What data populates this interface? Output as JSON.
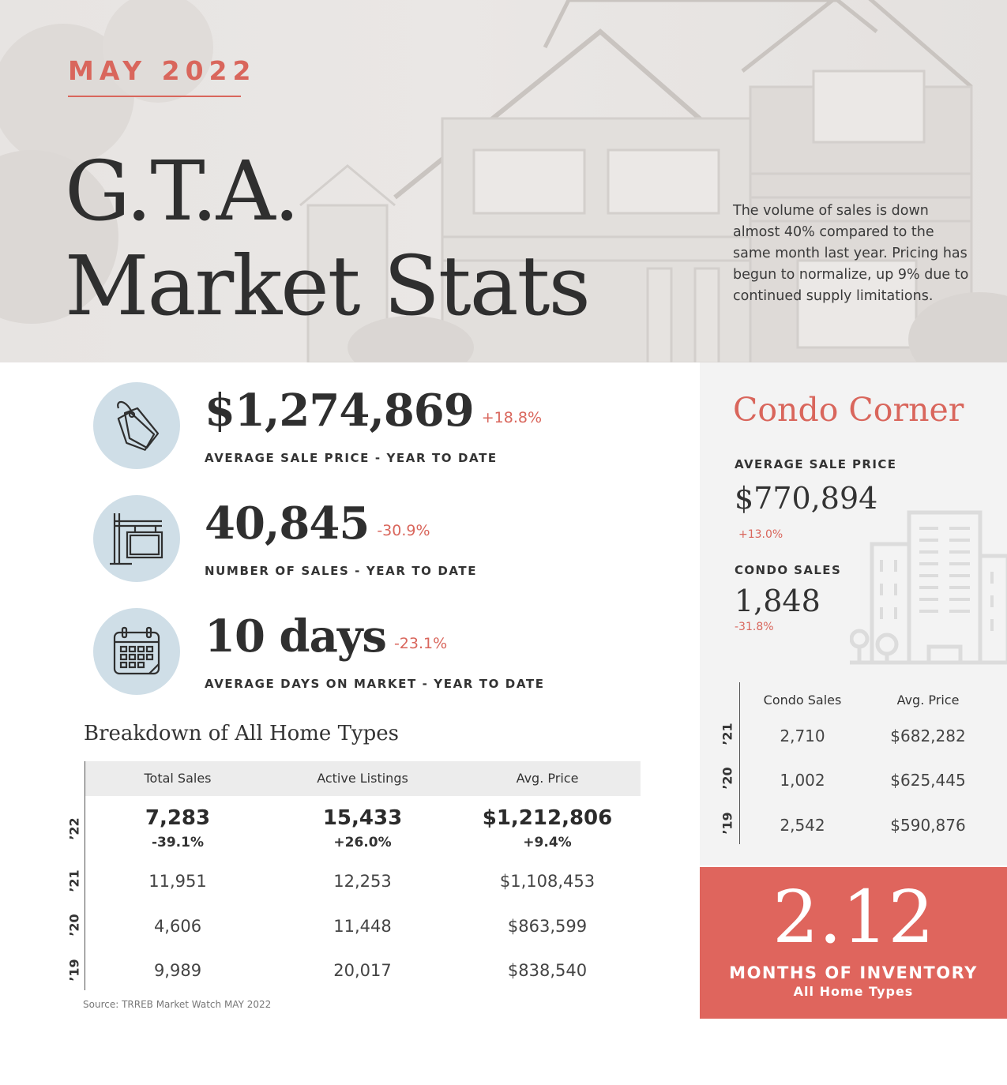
{
  "header": {
    "month": "MAY 2022",
    "title_line1": "G.T.A.",
    "title_line2": "Market Stats",
    "intro": "The volume of sales is down almost 40% compared to the same month last year.  Pricing has begun to normalize, up 9% due to continued supply limitations."
  },
  "kpis": [
    {
      "value": "$1,274,869",
      "change": "+18.8%",
      "label": "AVERAGE SALE PRICE - YEAR TO DATE",
      "icon": "price-tag-icon"
    },
    {
      "value": "40,845",
      "change": "-30.9%",
      "label": "NUMBER OF SALES - YEAR TO DATE",
      "icon": "sale-sign-icon"
    },
    {
      "value": "10 days",
      "change": "-23.1%",
      "label": "AVERAGE DAYS ON MARKET - YEAR TO DATE",
      "icon": "calendar-icon"
    }
  ],
  "breakdown": {
    "title": "Breakdown of All Home Types",
    "columns": [
      "Total Sales",
      "Active Listings",
      "Avg. Price"
    ],
    "current": {
      "year": "’22",
      "values": [
        "7,283",
        "15,433",
        "$1,212,806"
      ],
      "changes": [
        "-39.1%",
        "+26.0%",
        "+9.4%"
      ]
    },
    "rows": [
      {
        "year": "’21",
        "values": [
          "11,951",
          "12,253",
          "$1,108,453"
        ]
      },
      {
        "year": "’20",
        "values": [
          "4,606",
          "11,448",
          "$863,599"
        ]
      },
      {
        "year": "’19",
        "values": [
          "9,989",
          "20,017",
          "$838,540"
        ]
      }
    ],
    "source": "Source: TRREB Market Watch MAY 2022"
  },
  "condo": {
    "title": "Condo Corner",
    "avg_price_label": "AVERAGE SALE PRICE",
    "avg_price_value": "$770,894",
    "avg_price_change": "+13.0%",
    "sales_label": "CONDO SALES",
    "sales_value": "1,848",
    "sales_change": "-31.8%",
    "columns": [
      "Condo Sales",
      "Avg. Price"
    ],
    "rows": [
      {
        "year": "’21",
        "values": [
          "2,710",
          "$682,282"
        ]
      },
      {
        "year": "’20",
        "values": [
          "1,002",
          "$625,445"
        ]
      },
      {
        "year": "’19",
        "values": [
          "2,542",
          "$590,876"
        ]
      }
    ]
  },
  "inventory": {
    "value": "2.12",
    "label": "MONTHS OF INVENTORY",
    "sub": "All Home Types"
  },
  "colors": {
    "accent": "#d9665c",
    "inventory_bg": "#df655d",
    "icon_circle": "#cfdee7",
    "panel_bg": "#f3f3f3"
  }
}
